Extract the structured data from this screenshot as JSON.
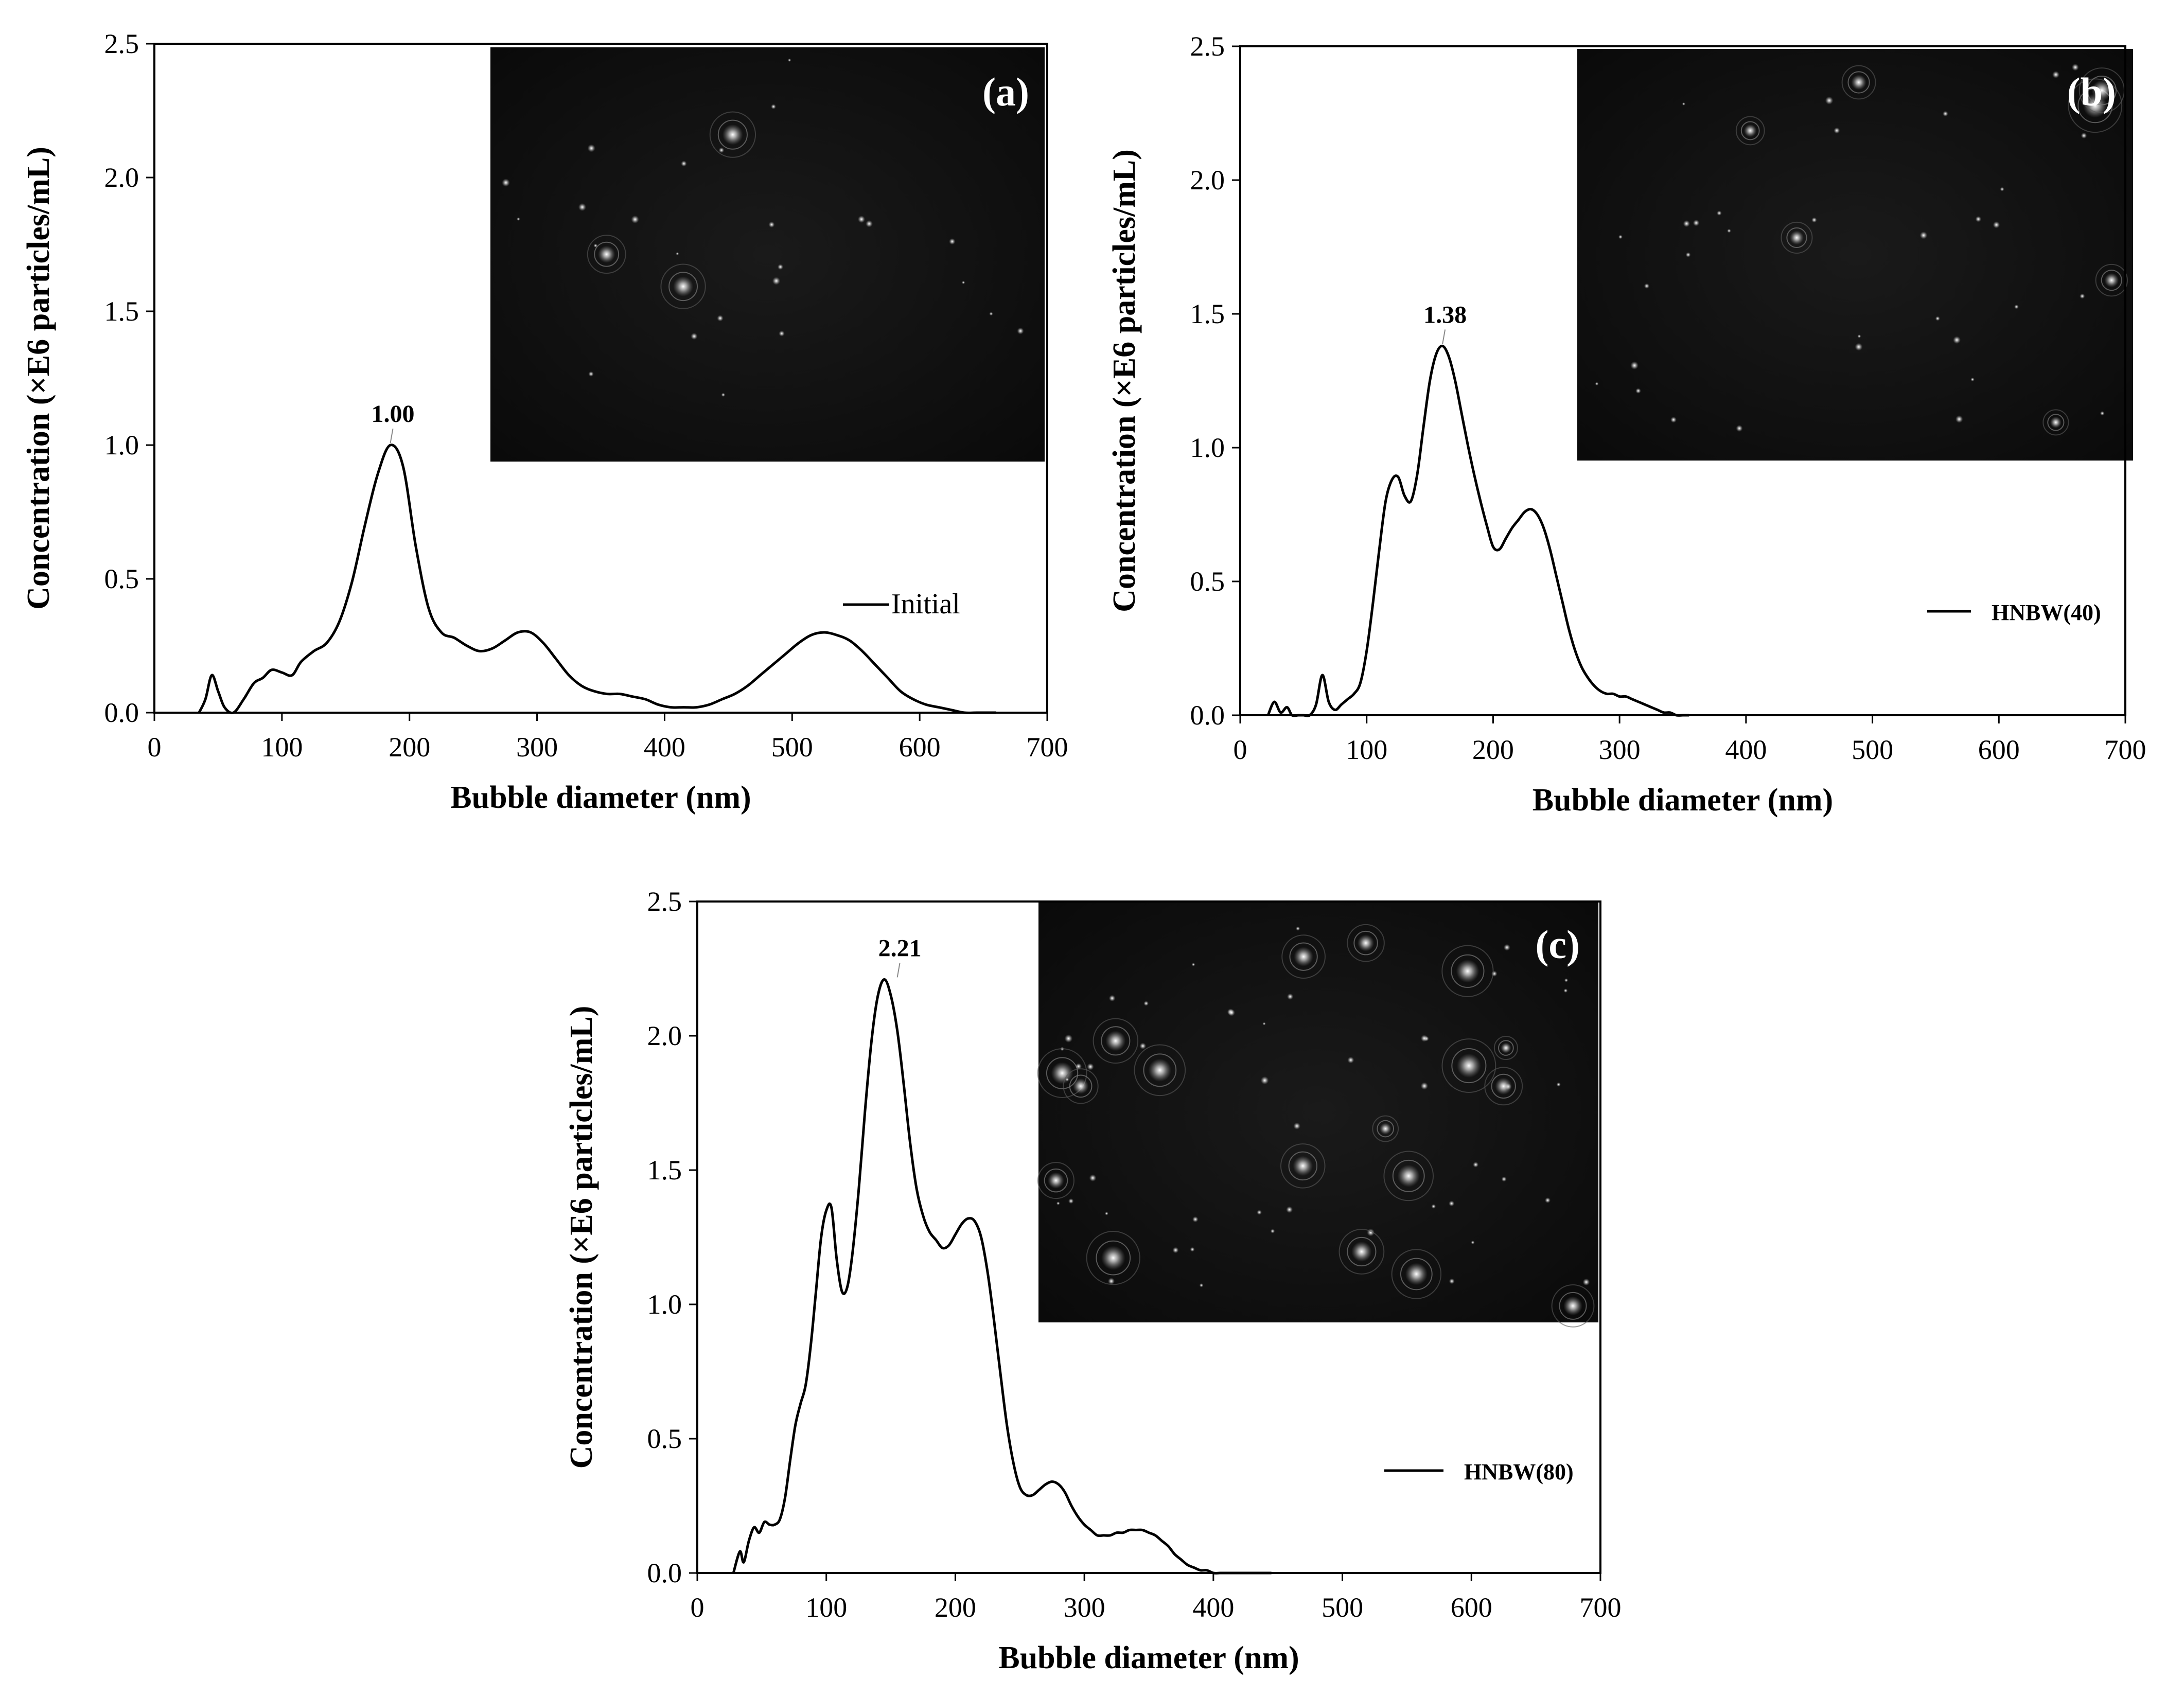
{
  "chart_data": [
    {
      "type": "line",
      "panel_label": "(a)",
      "xlabel": "Bubble diameter (nm)",
      "ylabel": "Concentration (×E6 particles/mL)",
      "xlim": [
        0,
        700
      ],
      "ylim": [
        0,
        2.5
      ],
      "xticks": [
        "0",
        "100",
        "200",
        "300",
        "400",
        "500",
        "600",
        "700"
      ],
      "yticks": [
        "0.0",
        "0.5",
        "1.0",
        "1.5",
        "2.0",
        "2.5"
      ],
      "legend": "right",
      "inset": "dark microscopy image with bright bubble spots",
      "peak_label": {
        "text": "1.00",
        "x": 185,
        "y": 1.0
      },
      "series": [
        {
          "name": "Initial",
          "x": [
            35,
            40,
            45,
            50,
            55,
            62,
            70,
            78,
            85,
            92,
            100,
            108,
            115,
            125,
            135,
            145,
            155,
            165,
            175,
            185,
            195,
            205,
            215,
            225,
            235,
            245,
            255,
            265,
            275,
            285,
            295,
            305,
            315,
            325,
            335,
            345,
            355,
            365,
            375,
            385,
            395,
            405,
            415,
            425,
            435,
            445,
            455,
            465,
            475,
            485,
            495,
            505,
            515,
            525,
            535,
            545,
            555,
            565,
            575,
            585,
            595,
            605,
            615,
            625,
            635,
            645,
            660
          ],
          "y": [
            0.0,
            0.05,
            0.14,
            0.08,
            0.02,
            0.0,
            0.05,
            0.11,
            0.13,
            0.16,
            0.15,
            0.14,
            0.19,
            0.23,
            0.26,
            0.34,
            0.49,
            0.7,
            0.89,
            1.0,
            0.92,
            0.62,
            0.39,
            0.3,
            0.28,
            0.25,
            0.23,
            0.24,
            0.27,
            0.3,
            0.3,
            0.26,
            0.2,
            0.14,
            0.1,
            0.08,
            0.07,
            0.07,
            0.06,
            0.05,
            0.03,
            0.02,
            0.02,
            0.02,
            0.03,
            0.05,
            0.07,
            0.1,
            0.14,
            0.18,
            0.22,
            0.26,
            0.29,
            0.3,
            0.29,
            0.27,
            0.23,
            0.18,
            0.13,
            0.08,
            0.05,
            0.03,
            0.02,
            0.01,
            0.0,
            0.0,
            0.0
          ]
        }
      ]
    },
    {
      "type": "line",
      "panel_label": "(b)",
      "xlabel": "Bubble diameter (nm)",
      "ylabel": "Concentration (×E6 particles/mL)",
      "xlim": [
        0,
        700
      ],
      "ylim": [
        0,
        2.5
      ],
      "xticks": [
        "0",
        "100",
        "200",
        "300",
        "400",
        "500",
        "600",
        "700"
      ],
      "yticks": [
        "0.0",
        "0.5",
        "1.0",
        "1.5",
        "2.0",
        "2.5"
      ],
      "legend": "right",
      "inset": "dark microscopy image with bright bubble spots",
      "peak_label": {
        "text": "1.38",
        "x": 160,
        "y": 1.38
      },
      "series": [
        {
          "name": "HNBW(40)",
          "x": [
            22,
            27,
            32,
            37,
            41,
            46,
            50,
            55,
            60,
            65,
            70,
            75,
            80,
            85,
            90,
            95,
            100,
            105,
            110,
            115,
            120,
            125,
            130,
            135,
            140,
            145,
            150,
            155,
            160,
            165,
            170,
            175,
            180,
            185,
            190,
            195,
            200,
            205,
            210,
            215,
            220,
            225,
            230,
            235,
            240,
            245,
            250,
            255,
            260,
            265,
            270,
            275,
            280,
            285,
            290,
            295,
            300,
            305,
            310,
            315,
            320,
            325,
            330,
            335,
            340,
            345,
            350,
            355
          ],
          "y": [
            0.0,
            0.05,
            0.01,
            0.03,
            0.0,
            0.0,
            0.0,
            0.0,
            0.04,
            0.15,
            0.05,
            0.02,
            0.04,
            0.06,
            0.08,
            0.12,
            0.24,
            0.42,
            0.62,
            0.8,
            0.88,
            0.89,
            0.82,
            0.8,
            0.9,
            1.08,
            1.25,
            1.35,
            1.38,
            1.34,
            1.25,
            1.13,
            1.01,
            0.9,
            0.8,
            0.71,
            0.63,
            0.62,
            0.66,
            0.7,
            0.73,
            0.76,
            0.77,
            0.75,
            0.7,
            0.62,
            0.52,
            0.42,
            0.32,
            0.24,
            0.18,
            0.14,
            0.11,
            0.09,
            0.08,
            0.08,
            0.07,
            0.07,
            0.06,
            0.05,
            0.04,
            0.03,
            0.02,
            0.01,
            0.01,
            0.0,
            0.0,
            0.0
          ]
        }
      ]
    },
    {
      "type": "line",
      "panel_label": "(c)",
      "xlabel": "Bubble diameter (nm)",
      "ylabel": "Concentration (×E6 particles/mL)",
      "xlim": [
        0,
        700
      ],
      "ylim": [
        0,
        2.5
      ],
      "xticks": [
        "0",
        "100",
        "200",
        "300",
        "400",
        "500",
        "600",
        "700"
      ],
      "yticks": [
        "0.0",
        "0.5",
        "1.0",
        "1.5",
        "2.0",
        "2.5"
      ],
      "legend": "right",
      "inset": "dark microscopy image with bright bubble spots",
      "peak_label": {
        "text": "2.21",
        "x": 155,
        "y": 2.21
      },
      "series": [
        {
          "name": "HNBW(80)",
          "x": [
            28,
            33,
            36,
            40,
            44,
            48,
            52,
            56,
            60,
            64,
            68,
            72,
            76,
            80,
            84,
            88,
            92,
            96,
            100,
            104,
            108,
            112,
            116,
            120,
            125,
            130,
            135,
            140,
            145,
            150,
            155,
            160,
            165,
            170,
            175,
            180,
            185,
            190,
            195,
            200,
            205,
            210,
            215,
            220,
            225,
            230,
            235,
            240,
            245,
            250,
            255,
            260,
            265,
            270,
            275,
            280,
            285,
            290,
            295,
            300,
            305,
            310,
            315,
            320,
            325,
            330,
            335,
            340,
            345,
            350,
            355,
            360,
            365,
            370,
            375,
            380,
            385,
            390,
            395,
            400,
            405,
            410,
            415,
            420,
            425,
            430,
            435,
            440,
            445
          ],
          "y": [
            0.0,
            0.08,
            0.04,
            0.12,
            0.17,
            0.15,
            0.19,
            0.18,
            0.18,
            0.2,
            0.28,
            0.42,
            0.55,
            0.63,
            0.7,
            0.85,
            1.05,
            1.25,
            1.35,
            1.36,
            1.17,
            1.05,
            1.06,
            1.18,
            1.42,
            1.72,
            1.98,
            2.15,
            2.21,
            2.15,
            2.02,
            1.82,
            1.6,
            1.43,
            1.33,
            1.27,
            1.24,
            1.21,
            1.22,
            1.26,
            1.3,
            1.32,
            1.31,
            1.25,
            1.12,
            0.94,
            0.74,
            0.55,
            0.41,
            0.32,
            0.29,
            0.29,
            0.31,
            0.33,
            0.34,
            0.33,
            0.3,
            0.25,
            0.21,
            0.18,
            0.16,
            0.14,
            0.14,
            0.14,
            0.15,
            0.15,
            0.16,
            0.16,
            0.16,
            0.15,
            0.14,
            0.12,
            0.1,
            0.07,
            0.05,
            0.03,
            0.02,
            0.01,
            0.01,
            0.0,
            0.0,
            0.0,
            0.0,
            0.0,
            0.0,
            0.0,
            0.0,
            0.0,
            0.0
          ]
        }
      ]
    }
  ]
}
